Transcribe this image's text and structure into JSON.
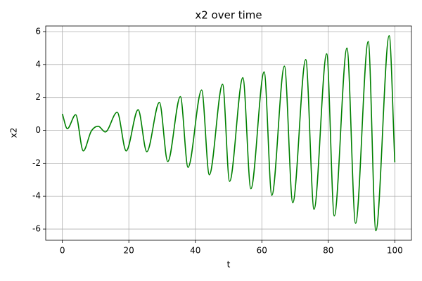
{
  "chart_data": {
    "type": "line",
    "title": "x2 over time",
    "x_label": "t",
    "y_label": "x2",
    "x": [
      0,
      1.5,
      4.0,
      6.3,
      8.7,
      10.8,
      12.9,
      16.5,
      19.2,
      22.8,
      25.4,
      29.2,
      31.7,
      35.5,
      37.8,
      41.9,
      44.2,
      48.2,
      50.3,
      54.3,
      56.7,
      60.7,
      63.0,
      66.8,
      69.3,
      73.2,
      75.7,
      79.5,
      81.8,
      85.6,
      88.2,
      92.0,
      94.3,
      98.3,
      100
    ],
    "series": [
      {
        "name": "x2",
        "color": "#008000",
        "values": [
          1.0,
          0.1,
          0.95,
          -1.25,
          -0.05,
          0.25,
          -0.1,
          1.1,
          -1.25,
          1.25,
          -1.3,
          1.7,
          -1.9,
          2.05,
          -2.25,
          2.45,
          -2.7,
          2.8,
          -3.1,
          3.2,
          -3.55,
          3.55,
          -3.95,
          3.9,
          -4.4,
          4.3,
          -4.8,
          4.65,
          -5.2,
          5.0,
          -5.65,
          5.4,
          -6.1,
          5.75,
          -1.95
        ]
      }
    ],
    "xlim": [
      -5,
      105
    ],
    "ylim": [
      -6.68,
      6.34
    ],
    "xticks": [
      0,
      20,
      40,
      60,
      80,
      100
    ],
    "yticks": [
      -6,
      -4,
      -2,
      0,
      2,
      4,
      6
    ],
    "grid": true
  }
}
